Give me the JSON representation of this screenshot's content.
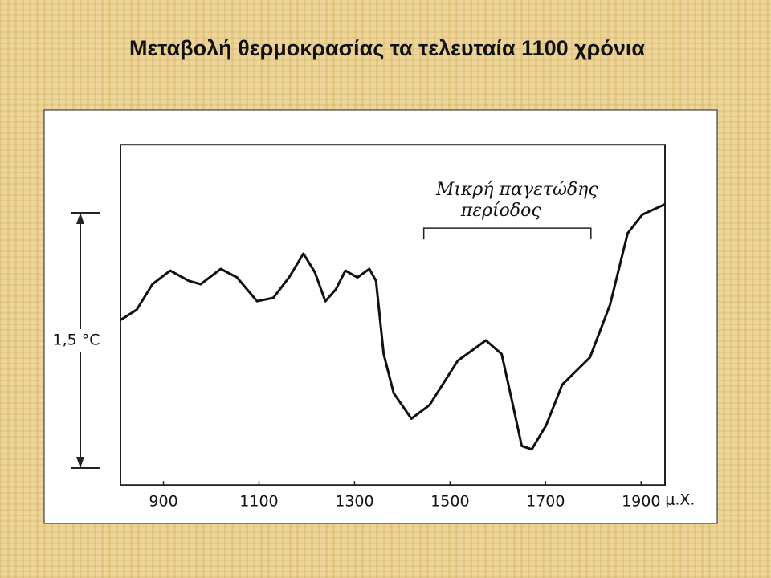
{
  "chart_data": {
    "type": "line",
    "title": "Μεταβολή θερμοκρασίας τα τελευταία 1100 χρόνια",
    "x": [
      810,
      844,
      877,
      914,
      953,
      978,
      1020,
      1054,
      1096,
      1130,
      1163,
      1193,
      1217,
      1239,
      1261,
      1281,
      1306,
      1331,
      1345,
      1361,
      1382,
      1419,
      1457,
      1516,
      1575,
      1608,
      1630,
      1650,
      1671,
      1701,
      1735,
      1793,
      1835,
      1872,
      1903,
      1950
    ],
    "values": [
      0.87,
      0.93,
      1.08,
      1.16,
      1.1,
      1.08,
      1.17,
      1.12,
      0.98,
      1.0,
      1.12,
      1.26,
      1.15,
      0.98,
      1.05,
      1.16,
      1.12,
      1.17,
      1.1,
      0.67,
      0.44,
      0.29,
      0.37,
      0.63,
      0.75,
      0.67,
      0.39,
      0.13,
      0.11,
      0.25,
      0.49,
      0.65,
      0.96,
      1.38,
      1.49,
      1.55
    ],
    "color": "#111111",
    "xlim": [
      810,
      1950
    ],
    "xticks": [
      900,
      1100,
      1300,
      1500,
      1700,
      1900
    ],
    "x_unit": "μ.Χ.",
    "ylim": [
      -0.1,
      1.9
    ],
    "scale_bar": {
      "label": "1,5 °C",
      "value": 1.5
    },
    "annotation": {
      "lines": [
        "Μικρή παγετώδης",
        "περίοδος"
      ],
      "x_range": [
        1445,
        1795
      ],
      "y": 1.41
    }
  }
}
